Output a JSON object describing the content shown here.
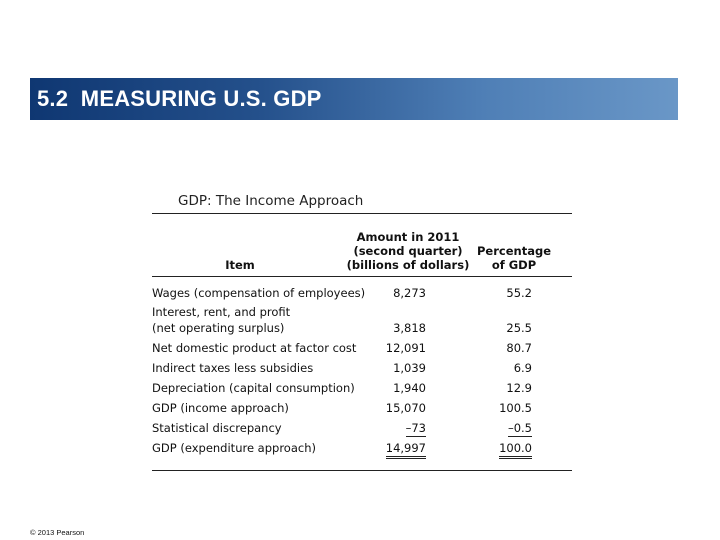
{
  "slide": {
    "title": "5.2  MEASURING U.S. GDP",
    "copyright": "© 2013 Pearson"
  },
  "table": {
    "caption": "GDP: The Income Approach",
    "headers": {
      "item": "Item",
      "amount": [
        "Amount in 2011",
        "(second quarter)",
        "(billions of dollars)"
      ],
      "percentage": [
        "Percentage",
        "of GDP"
      ]
    },
    "rows": [
      {
        "item": "Wages (compensation of employees)",
        "amount": "8,273",
        "pct": "55.2"
      },
      {
        "item": "Interest, rent, and profit",
        "amount": "",
        "pct": ""
      },
      {
        "item": "(net operating surplus)",
        "amount": "3,818",
        "pct": "25.5"
      },
      {
        "item": "Net domestic product at factor cost",
        "amount": "12,091",
        "pct": "80.7"
      },
      {
        "item": "Indirect taxes less subsidies",
        "amount": "1,039",
        "pct": "6.9"
      },
      {
        "item": "Depreciation (capital consumption)",
        "amount": "1,940",
        "pct": "12.9"
      },
      {
        "item": "GDP (income approach)",
        "amount": "15,070",
        "pct": "100.5"
      },
      {
        "item": "Statistical discrepancy",
        "amount": "–73",
        "pct": "–0.5"
      },
      {
        "item": "GDP (expenditure approach)",
        "amount": "14,997",
        "pct": "100.0"
      }
    ]
  }
}
